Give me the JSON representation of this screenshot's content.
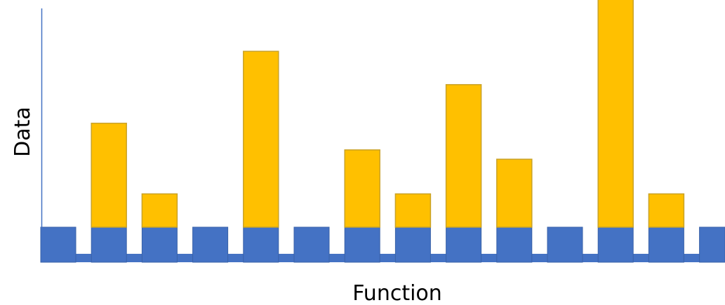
{
  "diagram": {
    "xlabel": "Function",
    "ylabel": "Data",
    "colors": {
      "base": "#4472C4",
      "base_stroke": "#3A62A8",
      "stack": "#FFC000",
      "stack_stroke": "#C9A227",
      "axis": "#4472C4"
    },
    "columns": [
      {
        "base": 1,
        "stack": 0
      },
      {
        "base": 1,
        "stack": 3.9
      },
      {
        "base": 1,
        "stack": 1.25
      },
      {
        "base": 1,
        "stack": 0
      },
      {
        "base": 1,
        "stack": 6.6
      },
      {
        "base": 1,
        "stack": 0
      },
      {
        "base": 1,
        "stack": 2.9
      },
      {
        "base": 1,
        "stack": 1.25
      },
      {
        "base": 1,
        "stack": 5.35
      },
      {
        "base": 1,
        "stack": 2.55
      },
      {
        "base": 1,
        "stack": 0
      },
      {
        "base": 1,
        "stack": 8.6
      },
      {
        "base": 1,
        "stack": 1.25
      },
      {
        "base": 1,
        "stack": 0
      }
    ]
  }
}
